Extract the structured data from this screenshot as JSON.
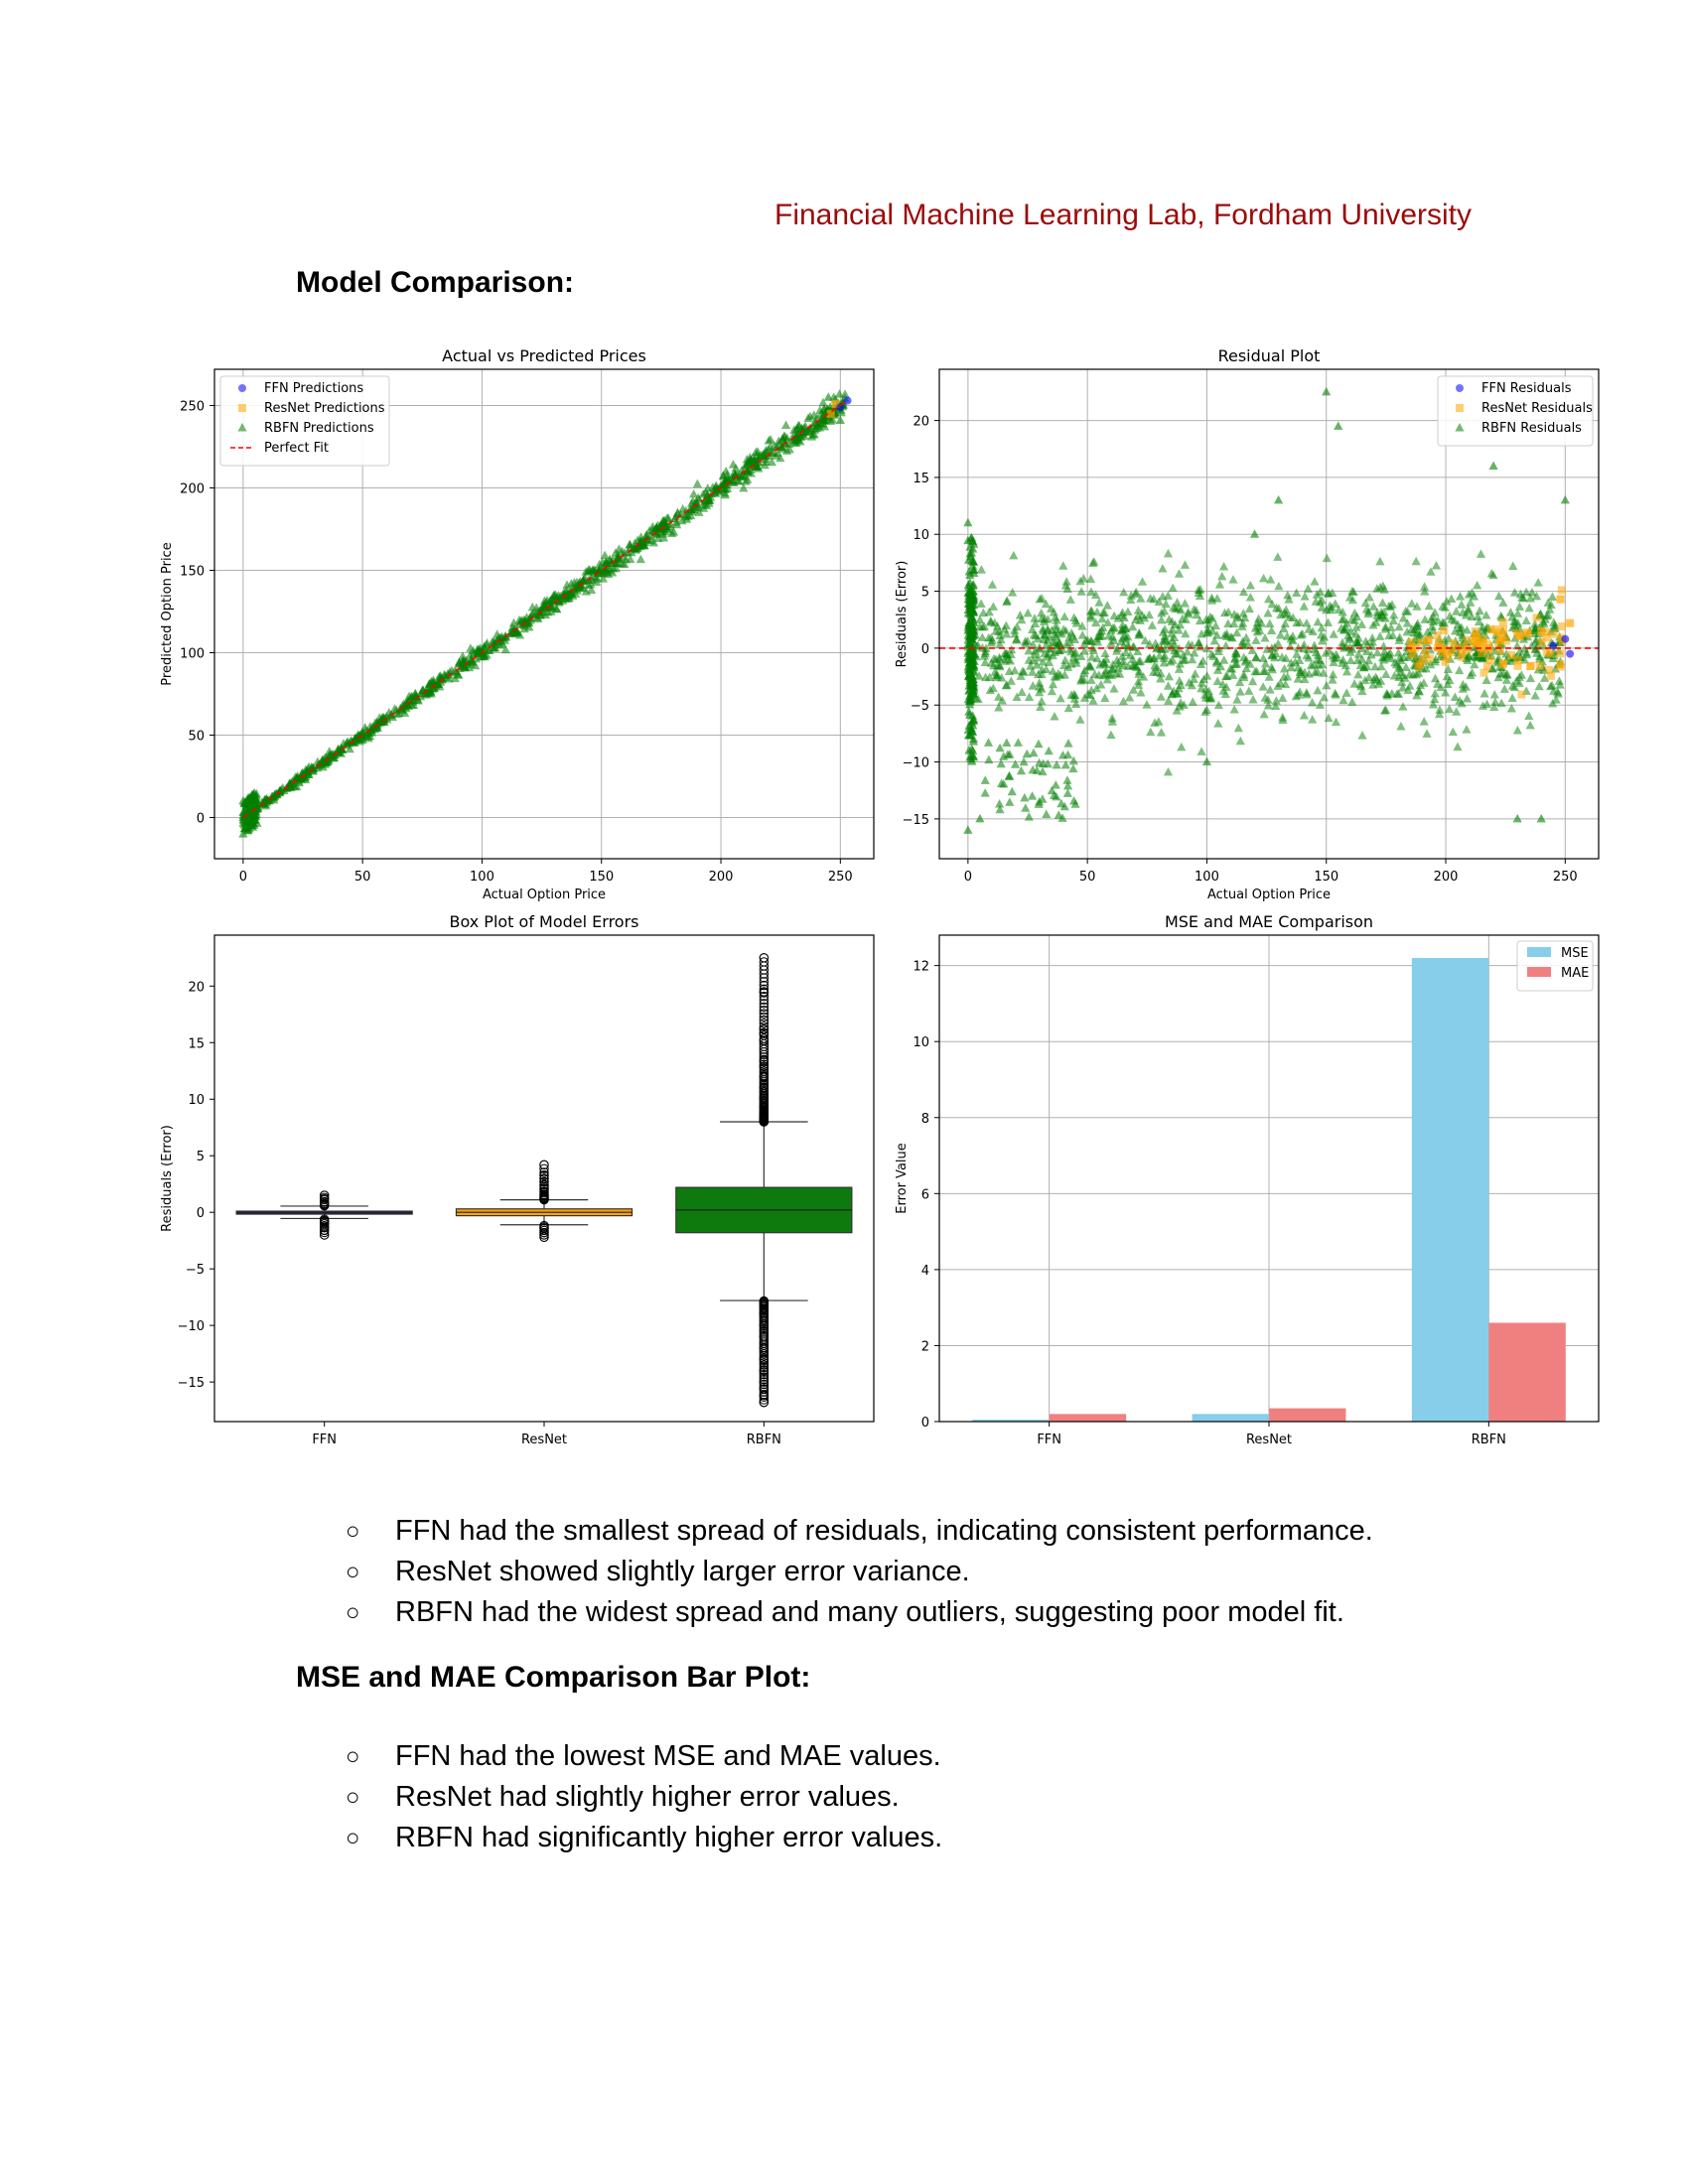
{
  "header": {
    "lab": "Financial Machine Learning Lab, Fordham University"
  },
  "sections": {
    "model_comparison": "Model Comparison:",
    "mse_mae": "MSE and MAE Comparison Bar Plot:"
  },
  "bullets_box": [
    "FFN had the smallest spread of residuals, indicating consistent performance.",
    "ResNet showed slightly larger error variance.",
    "RBFN had the widest spread and many outliers, suggesting poor model fit."
  ],
  "bullets_bar": [
    "FFN had the lowest MSE and MAE values.",
    "ResNet had slightly higher error values.",
    "RBFN had significantly higher error values."
  ],
  "bullet_glyph": "○",
  "colors": {
    "ffn": "#0000ff",
    "resnet": "#ffa500",
    "rbfn": "#008000",
    "perfect_fit": "#ff0000",
    "mse": "#87ceeb",
    "mae": "#f08080",
    "lab_header": "#9b0a0a"
  },
  "chart_data": [
    {
      "type": "scatter",
      "title": "Actual vs Predicted Prices",
      "xlabel": "Actual Option Price",
      "ylabel": "Predicted Option Price",
      "xlim": [
        -12,
        264
      ],
      "ylim": [
        -25,
        272
      ],
      "xticks": [
        0,
        50,
        100,
        150,
        200,
        250
      ],
      "yticks": [
        0,
        50,
        100,
        150,
        200,
        250
      ],
      "grid": true,
      "legend": "top-left",
      "series": [
        {
          "name": "FFN Predictions",
          "marker": "circle",
          "color": "#0000ff"
        },
        {
          "name": "ResNet Predictions",
          "marker": "square",
          "color": "#ffa500"
        },
        {
          "name": "RBFN Predictions",
          "marker": "triangle",
          "color": "#008000"
        },
        {
          "name": "Perfect Fit",
          "marker": "dashed-line",
          "color": "#ff0000",
          "x": [
            0,
            253
          ],
          "y": [
            0,
            253
          ]
        }
      ],
      "sample_points": {
        "rbfn": [
          [
            0,
            -10
          ],
          [
            0,
            10
          ],
          [
            0,
            0
          ],
          [
            5,
            6
          ],
          [
            20,
            18
          ],
          [
            50,
            47
          ],
          [
            100,
            100
          ],
          [
            150,
            150
          ],
          [
            200,
            200
          ],
          [
            240,
            236
          ],
          [
            245,
            255
          ],
          [
            250,
            241
          ]
        ],
        "ffn": [
          [
            253,
            253
          ],
          [
            250,
            249
          ]
        ],
        "resnet": [
          [
            248,
            251
          ],
          [
            246,
            245
          ]
        ]
      }
    },
    {
      "type": "scatter",
      "title": "Residual Plot",
      "xlabel": "Actual Option Price",
      "ylabel": "Residuals (Error)",
      "xlim": [
        -12,
        264
      ],
      "ylim": [
        -18.5,
        24.5
      ],
      "xticks": [
        0,
        50,
        100,
        150,
        200,
        250
      ],
      "yticks": [
        -15,
        -10,
        -5,
        0,
        5,
        10,
        15,
        20
      ],
      "grid": true,
      "legend": "top-right",
      "zero_line": {
        "y": 0,
        "color": "#ff0000",
        "style": "dashed"
      },
      "series": [
        {
          "name": "FFN Residuals",
          "marker": "circle",
          "color": "#0000ff"
        },
        {
          "name": "ResNet Residuals",
          "marker": "square",
          "color": "#ffa500"
        },
        {
          "name": "RBFN Residuals",
          "marker": "triangle",
          "color": "#008000"
        }
      ],
      "sample_points": {
        "rbfn": [
          [
            0,
            11
          ],
          [
            0,
            -16
          ],
          [
            5,
            -15
          ],
          [
            150,
            22.5
          ],
          [
            155,
            19.5
          ],
          [
            130,
            13
          ],
          [
            220,
            16
          ],
          [
            250,
            13
          ],
          [
            240,
            -15
          ],
          [
            230,
            -15
          ],
          [
            100,
            -10
          ],
          [
            120,
            10
          ]
        ],
        "ffn": [
          [
            250,
            0.8
          ],
          [
            252,
            -0.5
          ],
          [
            245,
            0.2
          ]
        ],
        "resnet": [
          [
            248,
            4.3
          ],
          [
            252,
            2.2
          ],
          [
            240,
            1.5
          ]
        ]
      }
    },
    {
      "type": "box",
      "title": "Box Plot of Model Errors",
      "xlabel": "",
      "ylabel": "Residuals (Error)",
      "categories": [
        "FFN",
        "ResNet",
        "RBFN"
      ],
      "ylim": [
        -18.5,
        24.5
      ],
      "yticks": [
        -15,
        -10,
        -5,
        0,
        5,
        10,
        15,
        20
      ],
      "grid": false,
      "boxes": [
        {
          "name": "FFN",
          "q1": -0.15,
          "median": -0.02,
          "q3": 0.1,
          "whisker_low": -0.55,
          "whisker_high": 0.55,
          "outlier_low": -2.0,
          "outlier_high": 1.5,
          "outliers": [
            -2.0,
            -1.6,
            -1.3,
            -1.0,
            -0.8,
            0.7,
            0.9,
            1.1,
            1.3,
            1.5
          ],
          "color": "#191970"
        },
        {
          "name": "ResNet",
          "q1": -0.3,
          "median": 0.0,
          "q3": 0.3,
          "whisker_low": -1.1,
          "whisker_high": 1.1,
          "outlier_low": -2.2,
          "outlier_high": 4.2,
          "outliers": [
            -2.2,
            -2.0,
            -1.8,
            -1.6,
            -1.4,
            -1.3,
            1.3,
            1.5,
            1.8,
            2.1,
            2.4,
            2.7,
            3.0,
            3.3,
            4.2
          ],
          "color": "#ffa500"
        },
        {
          "name": "RBFN",
          "q1": -1.8,
          "median": 0.2,
          "q3": 2.2,
          "whisker_low": -7.8,
          "whisker_high": 8.0,
          "outlier_low": -16.8,
          "outlier_high": 22.5,
          "outliers": [
            -16.8,
            -16.2,
            -15.6,
            -15.0,
            -14.0,
            -13.0,
            -12.0,
            -11.0,
            -10.0,
            -9.0,
            -8.3,
            8.5,
            9.3,
            10.1,
            11.0,
            12.0,
            12.9,
            13.4,
            15.2,
            15.8,
            16.2,
            19.5,
            22.5
          ],
          "color": "#0e7a0e"
        }
      ]
    },
    {
      "type": "bar",
      "title": "MSE and MAE Comparison",
      "xlabel": "",
      "ylabel": "Error Value",
      "categories": [
        "FFN",
        "ResNet",
        "RBFN"
      ],
      "ylim": [
        0,
        12.8
      ],
      "yticks": [
        0,
        2,
        4,
        6,
        8,
        10,
        12
      ],
      "grid": true,
      "legend": "top-right",
      "series": [
        {
          "name": "MSE",
          "values": [
            0.05,
            0.2,
            12.2
          ],
          "color": "#87ceeb"
        },
        {
          "name": "MAE",
          "values": [
            0.2,
            0.35,
            2.6
          ],
          "color": "#f08080"
        }
      ]
    }
  ]
}
